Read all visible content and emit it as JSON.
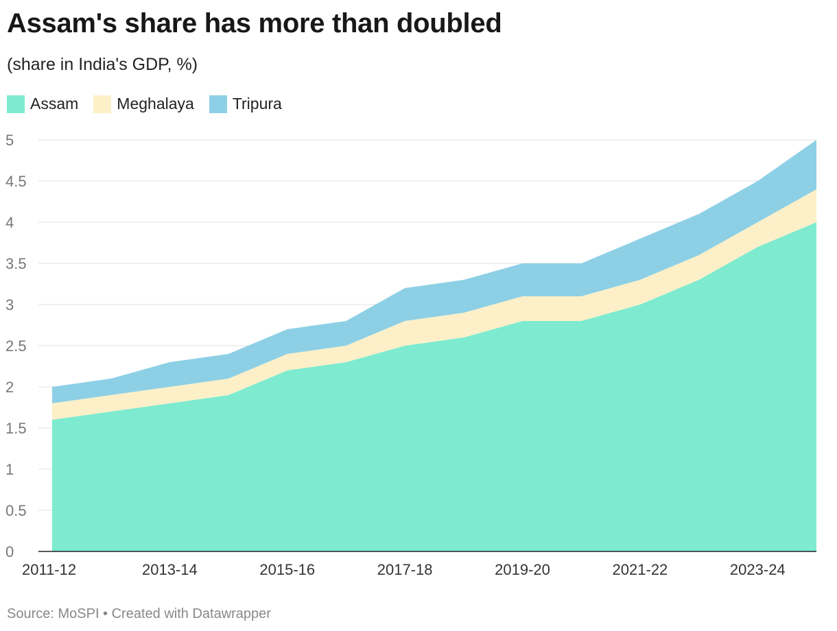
{
  "chart_data": {
    "type": "area",
    "stacked": true,
    "title": "Assam's share has more than doubled",
    "subtitle": "(share in India's GDP, %)",
    "source": "Source: MoSPI • Created with Datawrapper",
    "x": [
      "2011-12",
      "2012-13",
      "2013-14",
      "2014-15",
      "2015-16",
      "2016-17",
      "2017-18",
      "2018-19",
      "2019-20",
      "2020-21",
      "2021-22",
      "2022-23",
      "2023-24",
      "2024-25"
    ],
    "x_tick_labels": [
      "2011-12",
      "2013-14",
      "2015-16",
      "2017-18",
      "2019-20",
      "2021-22",
      "2023-24"
    ],
    "y_ticks": [
      "0",
      "0.5",
      "1",
      "1.5",
      "2",
      "2.5",
      "3",
      "3.5",
      "4",
      "4.5",
      "5"
    ],
    "ylim": [
      0,
      5
    ],
    "grid": true,
    "legend_position": "top-left",
    "series": [
      {
        "name": "Assam",
        "color": "#7eebd0",
        "values": [
          1.6,
          1.7,
          1.8,
          1.9,
          2.2,
          2.3,
          2.5,
          2.6,
          2.8,
          2.8,
          3.0,
          3.3,
          3.7,
          4.0
        ]
      },
      {
        "name": "Meghalaya",
        "color": "#fdf0c8",
        "values": [
          0.2,
          0.2,
          0.2,
          0.2,
          0.2,
          0.2,
          0.3,
          0.3,
          0.3,
          0.3,
          0.3,
          0.3,
          0.3,
          0.4
        ]
      },
      {
        "name": "Tripura",
        "color": "#8dd0e6",
        "values": [
          0.2,
          0.2,
          0.3,
          0.3,
          0.3,
          0.3,
          0.4,
          0.4,
          0.4,
          0.4,
          0.5,
          0.5,
          0.5,
          0.6
        ]
      }
    ]
  }
}
